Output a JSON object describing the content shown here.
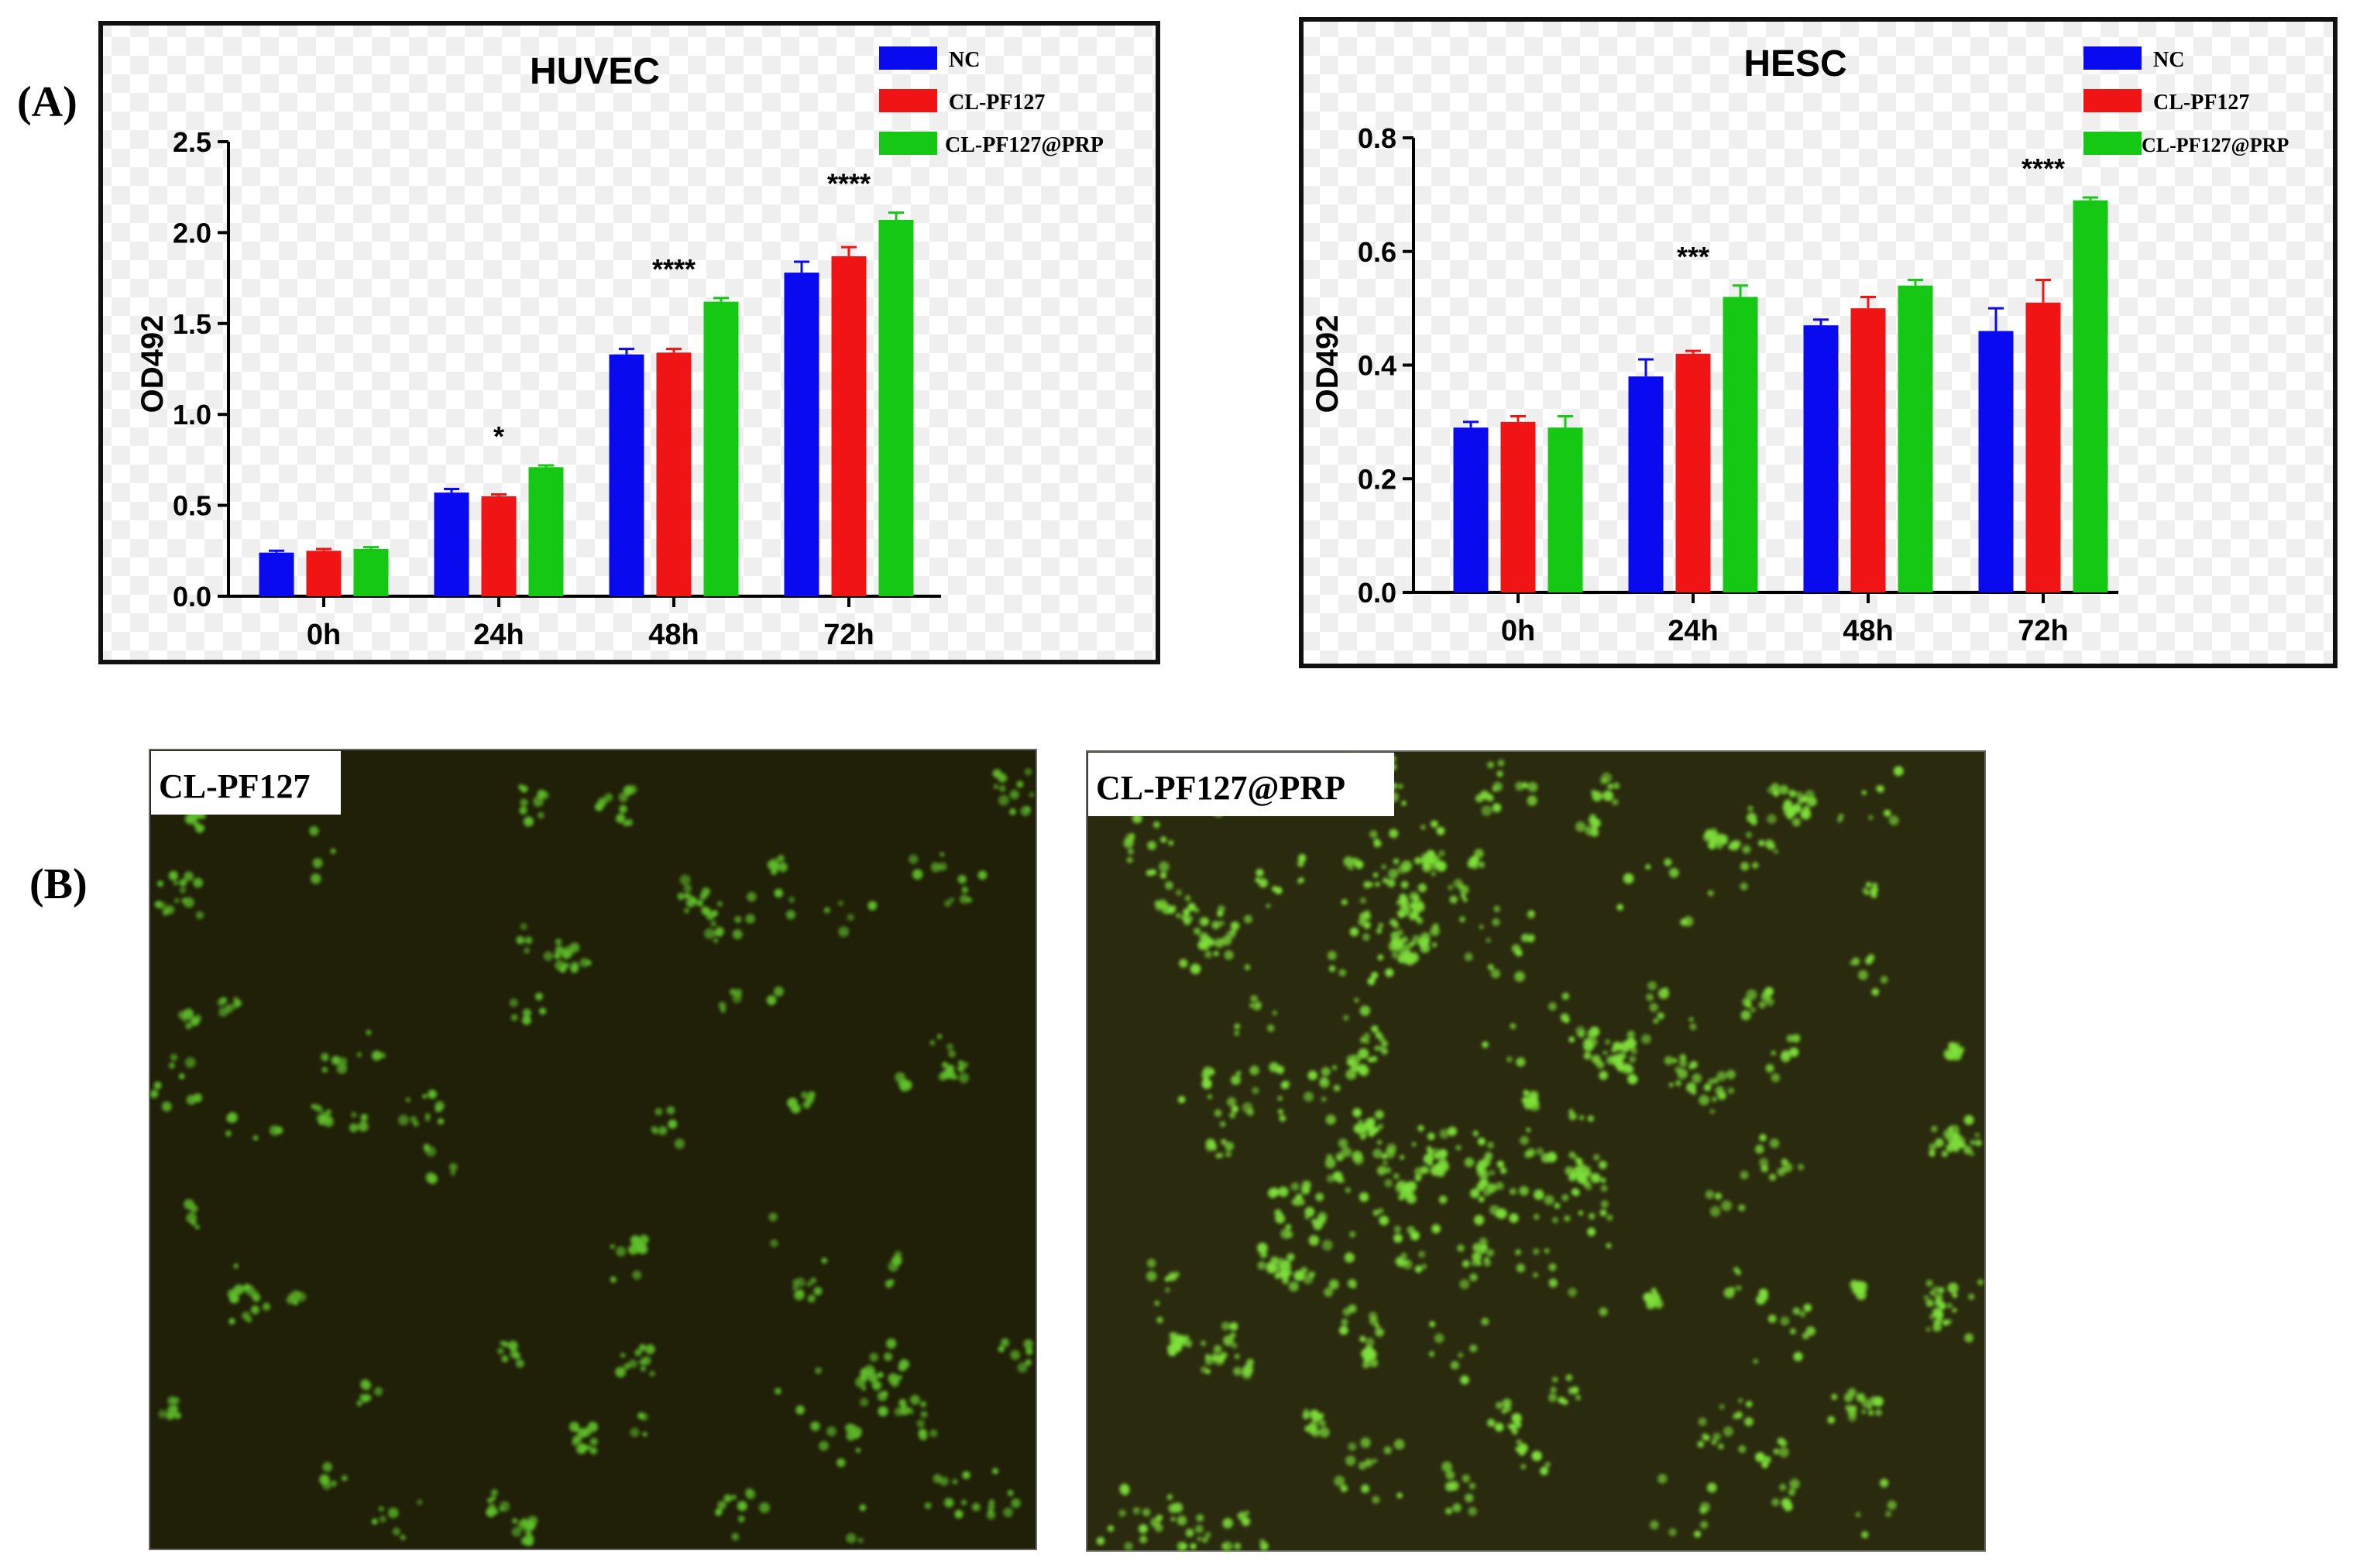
{
  "panels": {
    "a_label": "(A)",
    "b_label": "(B)"
  },
  "legend": {
    "items": [
      {
        "label": "NC",
        "color": "#0a0af0"
      },
      {
        "label": "CL-PF127",
        "color": "#f01414"
      },
      {
        "label": "CL-PF127@PRP",
        "color": "#14c814"
      }
    ]
  },
  "chart_data": [
    {
      "type": "bar",
      "title": "HUVEC",
      "xlabel": "",
      "ylabel": "OD492",
      "ylim": [
        0,
        2.5
      ],
      "yticks": [
        "0.0",
        "0.5",
        "1.0",
        "1.5",
        "2.0",
        "2.5"
      ],
      "categories": [
        "0h",
        "24h",
        "48h",
        "72h"
      ],
      "series": [
        {
          "name": "NC",
          "color": "#0a0af0",
          "values": [
            0.24,
            0.57,
            1.33,
            1.78
          ],
          "errors": [
            0.01,
            0.02,
            0.03,
            0.06
          ]
        },
        {
          "name": "CL-PF127",
          "color": "#f01414",
          "values": [
            0.25,
            0.55,
            1.34,
            1.87
          ],
          "errors": [
            0.01,
            0.01,
            0.02,
            0.05
          ]
        },
        {
          "name": "CL-PF127@PRP",
          "color": "#14c814",
          "values": [
            0.26,
            0.71,
            1.62,
            2.07
          ],
          "errors": [
            0.01,
            0.01,
            0.02,
            0.04
          ]
        }
      ],
      "significance": [
        "",
        "*",
        "****",
        "****"
      ],
      "grid": false,
      "legend_position": "top-right"
    },
    {
      "type": "bar",
      "title": "HESC",
      "xlabel": "",
      "ylabel": "OD492",
      "ylim": [
        0,
        0.8
      ],
      "yticks": [
        "0.0",
        "0.2",
        "0.4",
        "0.6",
        "0.8"
      ],
      "categories": [
        "0h",
        "24h",
        "48h",
        "72h"
      ],
      "series": [
        {
          "name": "NC",
          "color": "#0a0af0",
          "values": [
            0.29,
            0.38,
            0.47,
            0.46
          ],
          "errors": [
            0.01,
            0.03,
            0.01,
            0.04
          ]
        },
        {
          "name": "CL-PF127",
          "color": "#f01414",
          "values": [
            0.3,
            0.42,
            0.5,
            0.51
          ],
          "errors": [
            0.01,
            0.005,
            0.02,
            0.04
          ]
        },
        {
          "name": "CL-PF127@PRP",
          "color": "#14c814",
          "values": [
            0.29,
            0.52,
            0.54,
            0.69
          ],
          "errors": [
            0.02,
            0.02,
            0.01,
            0.005
          ]
        }
      ],
      "significance": [
        "",
        "***",
        "",
        "****"
      ],
      "grid": false,
      "legend_position": "top-right"
    }
  ],
  "micrographs": [
    {
      "label": "CL-PF127",
      "background": "#201f08",
      "cell_color": "#5fbf2a",
      "density": 0.45
    },
    {
      "label": "CL-PF127@PRP",
      "background": "#2a2a0e",
      "cell_color": "#7ee03a",
      "density": 0.8
    }
  ]
}
